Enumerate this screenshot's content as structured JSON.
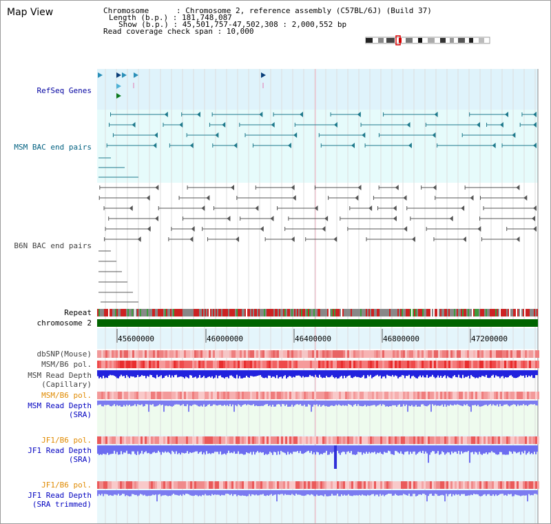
{
  "header": {
    "title": "Map View",
    "info_lines": [
      "Chromosome      : Chromosome 2, reference assembly (C57BL/6J) (Build 37)",
      "Length (b.p.) : 181,748,087",
      "Show (b.p.) : 45,501,757-47,502,308 : 2,000,552 bp",
      "Read coverage check span : 10,000"
    ]
  },
  "tracks": {
    "refseq": "RefSeq Genes",
    "msm_bac": "MSM BAC end pairs",
    "b6n_bac": "B6N BAC end pairs",
    "repeat": "Repeat",
    "chromosome": "chromosome 2",
    "dbsnp": "dbSNP(Mouse)",
    "msm_pol": "MSM/B6 pol.",
    "msm_depth_cap_1": "MSM Read Depth",
    "msm_depth_cap_2": "(Capillary)",
    "msm_pol_2": "MSM/B6 pol.",
    "msm_depth_sra_1": "MSM Read Depth",
    "msm_depth_sra_2": "(SRA)",
    "jf1_pol": "JF1/B6 pol.",
    "jf1_depth_1": "JF1 Read Depth",
    "jf1_depth_2": "(SRA)",
    "jf1_pol_2": "JF1/B6 pol.",
    "jf1_depth_trim_1": "JF1 Read Depth",
    "jf1_depth_trim_2": "(SRA trimmed)"
  },
  "axis": {
    "ticks": [
      "45600000",
      "46000000",
      "46400000",
      "46800000",
      "47200000"
    ]
  },
  "colors": {
    "refseq_bg": "#dff3fb",
    "msm_bg": "#e6fbfb",
    "green_bg": "#eefbee",
    "chromosome_bar": "#006400",
    "msm_label": "#006080",
    "refseq_label": "#0000a0",
    "pol_label_orange": "#e08a00",
    "depth_label_blue": "#0000c0"
  }
}
